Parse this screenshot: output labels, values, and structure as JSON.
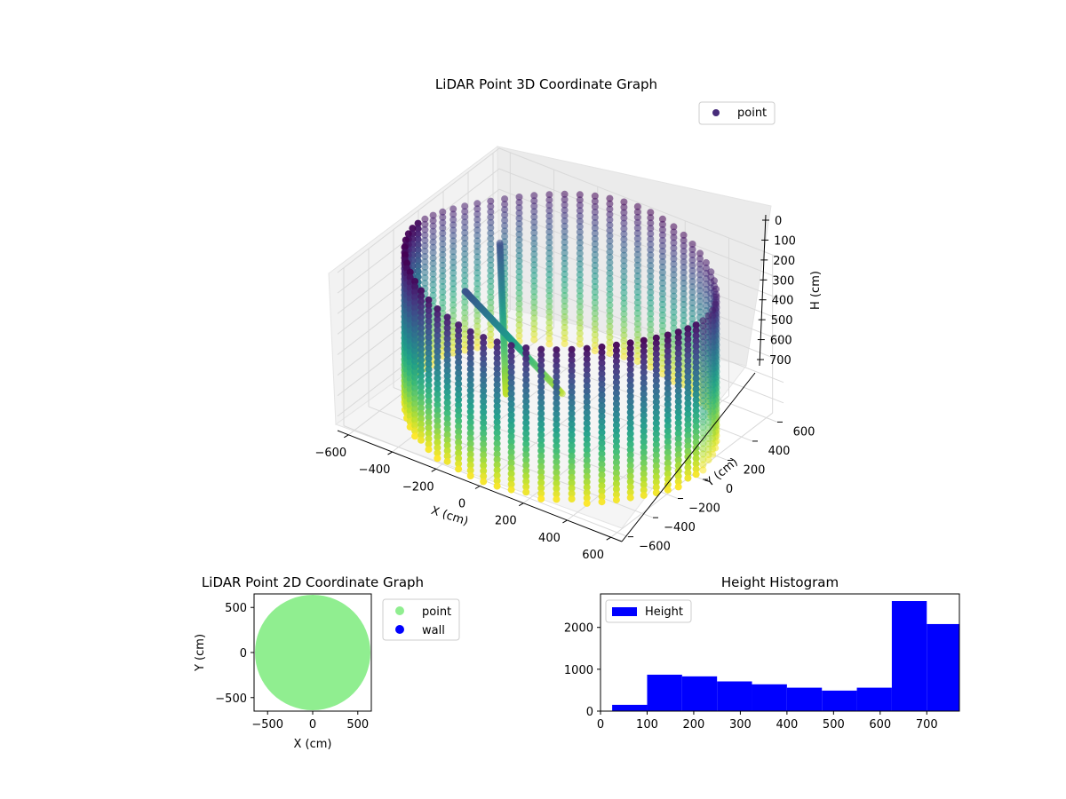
{
  "chart_data": [
    {
      "type": "scatter",
      "title": "LiDAR Point 3D Coordinate Graph",
      "xlabel": "X (cm)",
      "ylabel": "Y (cm)",
      "zlabel": "H (cm)",
      "xlim": [
        -650,
        650
      ],
      "ylim": [
        -650,
        650
      ],
      "zlim": [
        770,
        0
      ],
      "x_ticks": [
        "−600",
        "−400",
        "−200",
        "0",
        "200",
        "400",
        "600"
      ],
      "y_ticks": [
        "600",
        "400",
        "200",
        "0",
        "−200",
        "−400",
        "−600"
      ],
      "z_ticks": [
        "0",
        "100",
        "200",
        "300",
        "400",
        "500",
        "600",
        "700"
      ],
      "legend": {
        "entries": [
          "point"
        ],
        "placement": "upper-right",
        "color": "#472c7a"
      },
      "series": [
        {
          "name": "point",
          "colormap": "viridis",
          "radius": 620,
          "height_range": [
            0,
            770
          ]
        }
      ],
      "grid": true
    },
    {
      "type": "scatter",
      "title": "LiDAR Point 2D Coordinate Graph",
      "xlabel": "X (cm)",
      "ylabel": "Y (cm)",
      "xlim": [
        -650,
        650
      ],
      "ylim": [
        -650,
        650
      ],
      "x_ticks": [
        "−500",
        "0",
        "500"
      ],
      "y_ticks": [
        "500",
        "0",
        "−500"
      ],
      "legend": {
        "entries": [
          "point",
          "wall"
        ],
        "placement": "outside-right"
      },
      "series": [
        {
          "name": "point",
          "color": "#90ee90",
          "shape": "disc",
          "radius": 640
        },
        {
          "name": "wall",
          "color": "#0000ff"
        }
      ]
    },
    {
      "type": "bar",
      "title": "Height Histogram",
      "xlim": [
        0,
        770
      ],
      "ylim": [
        0,
        2800
      ],
      "x_ticks": [
        "0",
        "100",
        "200",
        "300",
        "400",
        "500",
        "600",
        "700"
      ],
      "y_ticks": [
        "0",
        "1000",
        "2000"
      ],
      "legend": {
        "entries": [
          "Height"
        ],
        "placement": "upper-left"
      },
      "series": [
        {
          "name": "Height",
          "color": "#0000ff",
          "bins": [
            [
              25,
              100,
              150
            ],
            [
              100,
              175,
              870
            ],
            [
              175,
              250,
              830
            ],
            [
              250,
              325,
              710
            ],
            [
              325,
              400,
              640
            ],
            [
              400,
              475,
              560
            ],
            [
              475,
              550,
              490
            ],
            [
              550,
              625,
              560
            ],
            [
              625,
              700,
              2630
            ],
            [
              700,
              775,
              2080
            ]
          ]
        }
      ]
    }
  ]
}
